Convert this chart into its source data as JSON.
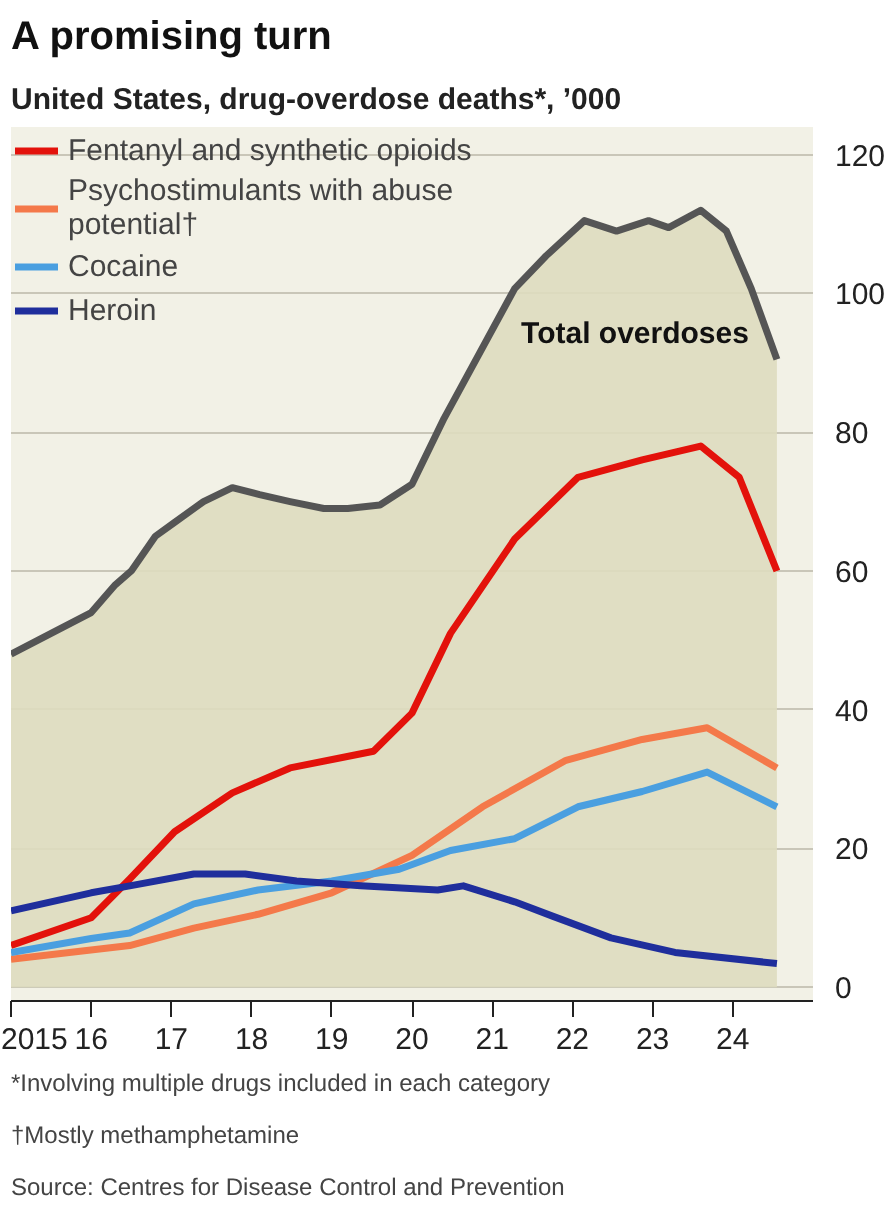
{
  "chart_data": {
    "type": "line",
    "title": "A promising turn",
    "subtitle": "United States, drug-overdose deaths*, ’000",
    "series": [
      {
        "name": "Total overdoses",
        "type": "area",
        "color": "#555555",
        "x": [
          2015,
          2015.5,
          2016,
          2016.3,
          2016.5,
          2016.8,
          2017.04,
          2017.4,
          2017.76,
          2018.1,
          2018.48,
          2018.9,
          2019.2,
          2019.6,
          2020.0,
          2020.4,
          2020.8,
          2021.28,
          2021.67,
          2022.15,
          2022.55,
          2022.95,
          2023.2,
          2023.6,
          2023.92,
          2024.23,
          2024.55
        ],
        "values": [
          48,
          51,
          54,
          58,
          60,
          65,
          67,
          70,
          72,
          71,
          70,
          69,
          69,
          69.5,
          72.5,
          82,
          90.5,
          100.7,
          105.4,
          110.5,
          109,
          110.5,
          109.5,
          112,
          109,
          100.7,
          90.5
        ]
      },
      {
        "name": "Fentanyl and synthetic opioids",
        "color": "#e3120b",
        "x": [
          2015,
          2016,
          2016.48,
          2017.04,
          2017.76,
          2018.48,
          2019.52,
          2020.0,
          2020.48,
          2021.28,
          2022.07,
          2022.87,
          2023.6,
          2024.08,
          2024.55
        ],
        "values": [
          6,
          10,
          15.6,
          22.4,
          28,
          31.6,
          34,
          39.5,
          51,
          64.6,
          73.5,
          76,
          78,
          73.5,
          60
        ]
      },
      {
        "name": "Psychostimulants with abuse potential†",
        "color": "#f4794a",
        "x": [
          2015,
          2016.48,
          2017.28,
          2018.08,
          2019.0,
          2020.0,
          2020.88,
          2021.92,
          2022.87,
          2023.68,
          2024.55
        ],
        "values": [
          4,
          6,
          8.5,
          10.5,
          13.6,
          19,
          26,
          32.7,
          35.7,
          37.4,
          31.6
        ]
      },
      {
        "name": "Cocaine",
        "color": "#4a9fe0",
        "x": [
          2015,
          2016,
          2016.48,
          2017.28,
          2018.08,
          2019.0,
          2019.84,
          2020.48,
          2021.28,
          2022.07,
          2022.87,
          2023.68,
          2024.55
        ],
        "values": [
          5,
          7,
          7.8,
          12,
          14,
          15.3,
          17,
          19.7,
          21.4,
          26,
          28.2,
          31,
          26
        ]
      },
      {
        "name": "Heroin",
        "color": "#1f2e9c",
        "x": [
          2015,
          2016,
          2016.48,
          2017.28,
          2017.92,
          2018.56,
          2019.36,
          2020.32,
          2020.64,
          2021.28,
          2021.76,
          2022.48,
          2023.28,
          2024.55
        ],
        "values": [
          11,
          13.6,
          14.6,
          16.3,
          16.3,
          15.3,
          14.6,
          14,
          14.6,
          12.3,
          10.2,
          7.1,
          5,
          3.4
        ]
      }
    ],
    "xlim": [
      2015,
      2025
    ],
    "xticks": [
      {
        "value": 2015,
        "label": "2015"
      },
      {
        "value": 2016,
        "label": "16"
      },
      {
        "value": 2017,
        "label": "17"
      },
      {
        "value": 2018,
        "label": "18"
      },
      {
        "value": 2019,
        "label": "19"
      },
      {
        "value": 2020,
        "label": "20"
      },
      {
        "value": 2021,
        "label": "21"
      },
      {
        "value": 2022,
        "label": "22"
      },
      {
        "value": 2023,
        "label": "23"
      },
      {
        "value": 2024,
        "label": "24"
      }
    ],
    "ylim": [
      -2,
      124
    ],
    "yticks": [
      0,
      20,
      40,
      60,
      80,
      100,
      120
    ],
    "grid": "y",
    "legend": "top left",
    "annotations": [
      "*Involving multiple drugs included in each category",
      "†Mostly methamphetamine",
      "Source: Centres for Disease Control and Prevention"
    ]
  }
}
